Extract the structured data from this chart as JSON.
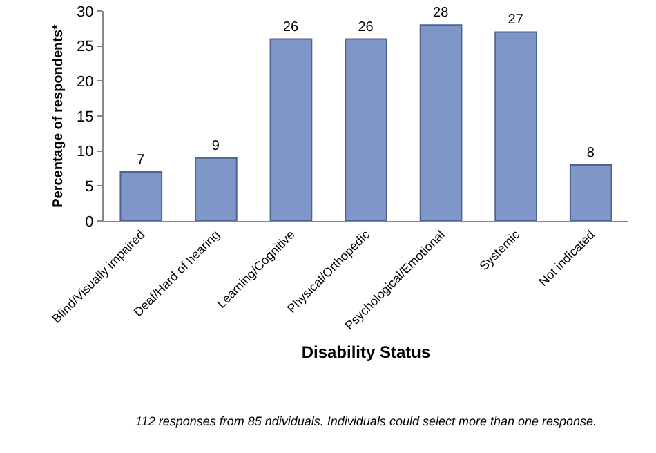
{
  "chart_data": {
    "type": "bar",
    "xlabel": "Disability Status",
    "ylabel": "Percentage of respondents*",
    "categories": [
      "Blind/Visually impaired",
      "Deaf/Hard of hearing",
      "Learning/Cognitive",
      "Physical/Orthopedic",
      "Psychological/Emotional",
      "Systemic",
      "Not indicated"
    ],
    "values": [
      7,
      9,
      26,
      26,
      28,
      27,
      8
    ],
    "color": "#7f96c8",
    "ylim": [
      0,
      30
    ],
    "yticks": [
      0,
      5,
      10,
      15,
      20,
      25,
      30
    ],
    "grid": false,
    "data_labels": true,
    "annotations": [
      "112 responses from 85 ndividuals. Individuals could select more than one response."
    ]
  }
}
